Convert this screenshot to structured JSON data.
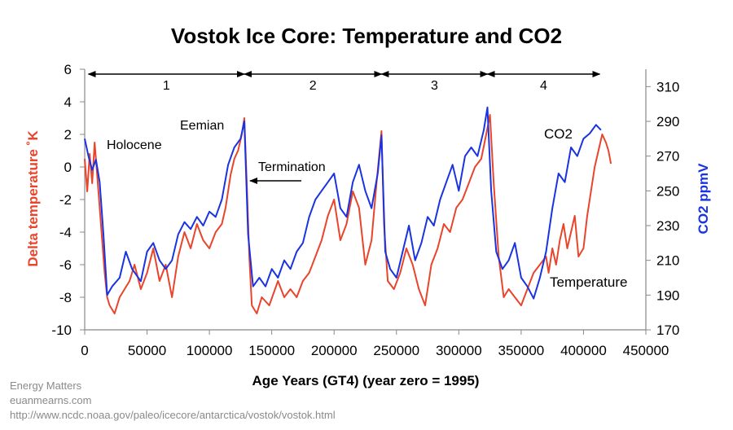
{
  "chart_data": {
    "type": "line",
    "title": "Vostok Ice Core: Temperature and CO2",
    "xlabel": "Age Years (GT4) (year zero = 1995)",
    "ylabel_left": "Delta temperature ˚K",
    "ylabel_right": "CO2 ppmV",
    "xlim": [
      0,
      450000
    ],
    "ylim_left": [
      -10,
      6
    ],
    "ylim_right": [
      170,
      320
    ],
    "x_ticks": [
      "0",
      "50000",
      "100000",
      "150000",
      "200000",
      "250000",
      "300000",
      "350000",
      "400000",
      "450000"
    ],
    "y_left_ticks": [
      "6",
      "4",
      "2",
      "0",
      "-2",
      "-4",
      "-6",
      "-8",
      "-10"
    ],
    "y_right_ticks": [
      "310",
      "290",
      "270",
      "250",
      "230",
      "210",
      "190",
      "170"
    ],
    "grid": false,
    "colors": {
      "temperature": "#e8452c",
      "co2": "#1a33e0"
    },
    "periods": [
      {
        "label": "1",
        "start": 3000,
        "end": 128000
      },
      {
        "label": "2",
        "start": 128000,
        "end": 238000
      },
      {
        "label": "3",
        "start": 238000,
        "end": 323000
      },
      {
        "label": "4",
        "start": 323000,
        "end": 413000
      }
    ],
    "annotations": [
      {
        "text": "Holocene"
      },
      {
        "text": "Eemian"
      },
      {
        "text": "Termination"
      },
      {
        "text": "CO2"
      },
      {
        "text": "Temperature"
      }
    ],
    "series": [
      {
        "name": "Temperature",
        "axis": "left",
        "x": [
          0,
          2000,
          4000,
          6000,
          8000,
          10000,
          12000,
          14000,
          16000,
          18000,
          20000,
          24000,
          28000,
          32000,
          36000,
          40000,
          45000,
          50000,
          55000,
          60000,
          65000,
          70000,
          75000,
          80000,
          85000,
          90000,
          95000,
          100000,
          105000,
          110000,
          113000,
          117000,
          120000,
          123000,
          126000,
          128000,
          130000,
          132000,
          134000,
          138000,
          142000,
          148000,
          155000,
          160000,
          165000,
          170000,
          175000,
          180000,
          185000,
          190000,
          195000,
          200000,
          205000,
          210000,
          215000,
          220000,
          225000,
          230000,
          234000,
          238000,
          240000,
          243000,
          248000,
          253000,
          258000,
          263000,
          268000,
          273000,
          278000,
          283000,
          288000,
          293000,
          298000,
          303000,
          308000,
          313000,
          318000,
          322000,
          325000,
          328000,
          332000,
          336000,
          340000,
          345000,
          350000,
          355000,
          360000,
          365000,
          370000,
          372000,
          375000,
          378000,
          381000,
          384000,
          387000,
          390000,
          393000,
          396000,
          400000,
          403000,
          406000,
          409000,
          412000,
          415000,
          418000,
          420000,
          422000
        ],
        "values": [
          0.5,
          -1.5,
          0.8,
          -1.0,
          1.5,
          -0.5,
          -2.5,
          -4.5,
          -6.5,
          -8.0,
          -8.5,
          -9.0,
          -8.0,
          -7.5,
          -7.0,
          -6.0,
          -7.5,
          -6.5,
          -5.0,
          -7.0,
          -6.0,
          -8.0,
          -5.5,
          -4.0,
          -5.0,
          -3.5,
          -4.5,
          -5.0,
          -4.0,
          -3.5,
          -2.5,
          -0.5,
          0.5,
          1.0,
          2.0,
          3.0,
          -1.0,
          -5.5,
          -8.5,
          -9.0,
          -8.0,
          -8.5,
          -7.0,
          -8.0,
          -7.5,
          -8.0,
          -7.0,
          -6.5,
          -5.5,
          -4.5,
          -3.0,
          -2.0,
          -4.5,
          -3.5,
          -1.5,
          -2.5,
          -6.0,
          -4.5,
          -1.0,
          2.2,
          -3.5,
          -7.0,
          -7.5,
          -6.5,
          -5.0,
          -6.0,
          -7.5,
          -8.5,
          -6.0,
          -5.0,
          -3.5,
          -4.0,
          -2.5,
          -2.0,
          -1.0,
          0.0,
          0.5,
          2.0,
          3.2,
          -1.0,
          -5.5,
          -8.0,
          -7.5,
          -8.0,
          -8.5,
          -7.5,
          -6.5,
          -6.0,
          -5.5,
          -6.5,
          -5.0,
          -6.0,
          -4.5,
          -3.5,
          -5.0,
          -4.0,
          -3.0,
          -5.5,
          -5.0,
          -3.0,
          -1.5,
          0.0,
          1.0,
          2.0,
          1.5,
          1.0,
          0.2
        ]
      },
      {
        "name": "CO2",
        "axis": "right",
        "x": [
          0,
          3000,
          6000,
          9000,
          12000,
          15000,
          18000,
          22000,
          28000,
          33000,
          38000,
          45000,
          50000,
          55000,
          60000,
          65000,
          70000,
          75000,
          80000,
          85000,
          90000,
          95000,
          100000,
          105000,
          110000,
          115000,
          120000,
          125000,
          128000,
          131000,
          135000,
          140000,
          145000,
          150000,
          155000,
          160000,
          165000,
          170000,
          175000,
          180000,
          185000,
          190000,
          195000,
          200000,
          205000,
          210000,
          215000,
          220000,
          225000,
          230000,
          235000,
          238000,
          241000,
          245000,
          250000,
          255000,
          260000,
          265000,
          270000,
          275000,
          280000,
          285000,
          290000,
          295000,
          300000,
          305000,
          310000,
          315000,
          320000,
          323000,
          326000,
          330000,
          335000,
          340000,
          345000,
          350000,
          355000,
          360000,
          365000,
          370000,
          375000,
          380000,
          385000,
          390000,
          395000,
          400000,
          405000,
          410000,
          414000
        ],
        "values": [
          280,
          270,
          262,
          268,
          255,
          225,
          190,
          195,
          200,
          215,
          205,
          198,
          215,
          220,
          210,
          205,
          210,
          225,
          232,
          228,
          235,
          230,
          238,
          235,
          245,
          265,
          275,
          280,
          290,
          225,
          195,
          200,
          195,
          205,
          200,
          210,
          205,
          215,
          220,
          235,
          245,
          250,
          255,
          260,
          240,
          235,
          255,
          265,
          250,
          240,
          260,
          282,
          215,
          205,
          200,
          215,
          230,
          210,
          220,
          235,
          230,
          245,
          255,
          265,
          250,
          270,
          275,
          270,
          285,
          298,
          250,
          215,
          205,
          210,
          220,
          200,
          195,
          188,
          200,
          215,
          240,
          260,
          255,
          275,
          270,
          280,
          283,
          288,
          285
        ]
      }
    ]
  },
  "credits": {
    "line1": "Energy Matters",
    "line2": "euanmearns.com",
    "line3": "http://www.ncdc.noaa.gov/paleo/icecore/antarctica/vostok/vostok.html"
  }
}
